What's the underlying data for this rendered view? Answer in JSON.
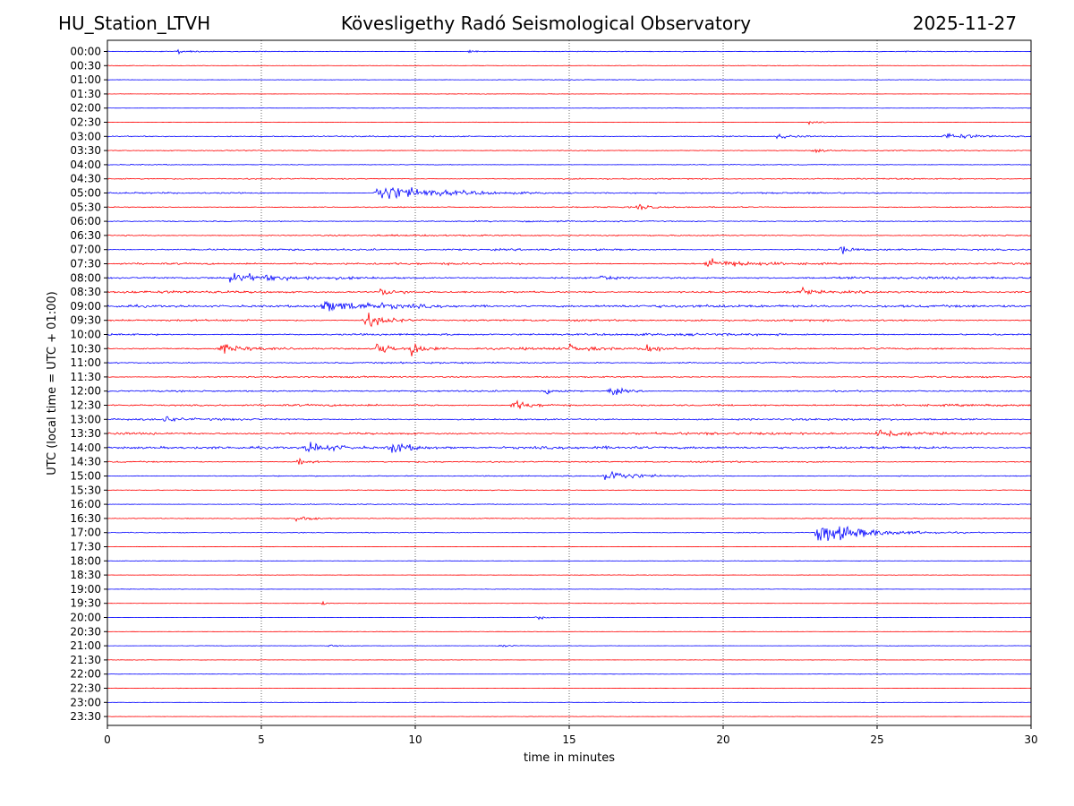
{
  "header": {
    "station": "HU_Station_LTVH",
    "title": "Kövesligethy Radó Seismological Observatory",
    "date": "2025-11-27"
  },
  "chart_data": {
    "type": "line",
    "title": "Kövesligethy Radó Seismological Observatory",
    "xlabel": "time in minutes",
    "ylabel": "UTC (local time = UTC + 01:00)",
    "xlim": [
      0,
      30
    ],
    "xticks": [
      0,
      5,
      10,
      15,
      20,
      25,
      30
    ],
    "grid_x": [
      5,
      10,
      15,
      20,
      25
    ],
    "rows": [
      "00:00",
      "00:30",
      "01:00",
      "01:30",
      "02:00",
      "02:30",
      "03:00",
      "03:30",
      "04:00",
      "04:30",
      "05:00",
      "05:30",
      "06:00",
      "06:30",
      "07:00",
      "07:30",
      "08:00",
      "08:30",
      "09:00",
      "09:30",
      "10:00",
      "10:30",
      "11:00",
      "11:30",
      "12:00",
      "12:30",
      "13:00",
      "13:30",
      "14:00",
      "14:30",
      "15:00",
      "15:30",
      "16:00",
      "16:30",
      "17:00",
      "17:30",
      "18:00",
      "18:30",
      "19:00",
      "19:30",
      "20:00",
      "20:30",
      "21:00",
      "21:30",
      "22:00",
      "22:30",
      "23:00",
      "23:30"
    ],
    "trace_colors": [
      "#0000ff",
      "#ff0000"
    ],
    "noise_levels": [
      0.6,
      0.4,
      0.4,
      0.3,
      0.3,
      0.3,
      0.8,
      0.6,
      0.5,
      0.9,
      1.0,
      0.8,
      0.9,
      1.0,
      1.3,
      1.3,
      1.5,
      1.5,
      1.8,
      1.3,
      1.5,
      1.5,
      1.0,
      1.0,
      1.1,
      1.3,
      1.3,
      1.5,
      1.8,
      1.0,
      0.8,
      0.6,
      0.6,
      0.6,
      0.6,
      0.3,
      0.3,
      0.3,
      0.3,
      0.3,
      0.3,
      0.3,
      0.3,
      0.3,
      0.3,
      0.3,
      0.3,
      0.3
    ],
    "events": [
      {
        "row": "00:00",
        "minute": 2.3,
        "amplitude": 3,
        "duration": 0.6
      },
      {
        "row": "00:00",
        "minute": 11.8,
        "amplitude": 3,
        "duration": 0.5
      },
      {
        "row": "02:30",
        "minute": 22.8,
        "amplitude": 3,
        "duration": 0.8
      },
      {
        "row": "03:00",
        "minute": 21.8,
        "amplitude": 4,
        "duration": 1.2
      },
      {
        "row": "03:00",
        "minute": 27.2,
        "amplitude": 5,
        "duration": 1.8
      },
      {
        "row": "03:30",
        "minute": 23.0,
        "amplitude": 3,
        "duration": 0.6
      },
      {
        "row": "05:00",
        "minute": 8.8,
        "amplitude": 14,
        "duration": 3.5
      },
      {
        "row": "05:30",
        "minute": 17.3,
        "amplitude": 6,
        "duration": 0.5
      },
      {
        "row": "07:00",
        "minute": 23.9,
        "amplitude": 7,
        "duration": 0.4
      },
      {
        "row": "07:30",
        "minute": 19.5,
        "amplitude": 7,
        "duration": 2.5
      },
      {
        "row": "08:00",
        "minute": 4.0,
        "amplitude": 6,
        "duration": 3.0
      },
      {
        "row": "08:00",
        "minute": 16.1,
        "amplitude": 7,
        "duration": 0.4
      },
      {
        "row": "08:30",
        "minute": 8.9,
        "amplitude": 6,
        "duration": 1.0
      },
      {
        "row": "08:30",
        "minute": 22.6,
        "amplitude": 6,
        "duration": 0.4
      },
      {
        "row": "09:00",
        "minute": 7.0,
        "amplitude": 7,
        "duration": 5.0
      },
      {
        "row": "09:30",
        "minute": 8.4,
        "amplitude": 12,
        "duration": 1.4
      },
      {
        "row": "10:30",
        "minute": 3.7,
        "amplitude": 6,
        "duration": 1.5
      },
      {
        "row": "10:30",
        "minute": 8.8,
        "amplitude": 14,
        "duration": 0.7
      },
      {
        "row": "10:30",
        "minute": 9.9,
        "amplitude": 13,
        "duration": 0.7
      },
      {
        "row": "10:30",
        "minute": 15.0,
        "amplitude": 5,
        "duration": 1.0
      },
      {
        "row": "10:30",
        "minute": 17.5,
        "amplitude": 6,
        "duration": 1.0
      },
      {
        "row": "12:00",
        "minute": 14.2,
        "amplitude": 6,
        "duration": 0.8
      },
      {
        "row": "12:00",
        "minute": 16.3,
        "amplitude": 7,
        "duration": 1.0
      },
      {
        "row": "12:30",
        "minute": 13.2,
        "amplitude": 7,
        "duration": 1.5
      },
      {
        "row": "13:00",
        "minute": 1.9,
        "amplitude": 5,
        "duration": 0.6
      },
      {
        "row": "13:30",
        "minute": 25.0,
        "amplitude": 8,
        "duration": 1.8
      },
      {
        "row": "14:00",
        "minute": 6.5,
        "amplitude": 8,
        "duration": 2.0
      },
      {
        "row": "14:00",
        "minute": 9.2,
        "amplitude": 10,
        "duration": 1.5
      },
      {
        "row": "14:30",
        "minute": 6.2,
        "amplitude": 6,
        "duration": 0.8
      },
      {
        "row": "15:00",
        "minute": 16.2,
        "amplitude": 10,
        "duration": 1.6
      },
      {
        "row": "16:30",
        "minute": 6.2,
        "amplitude": 5,
        "duration": 0.8
      },
      {
        "row": "17:00",
        "minute": 23.1,
        "amplitude": 18,
        "duration": 3.0
      },
      {
        "row": "19:30",
        "minute": 7.0,
        "amplitude": 3,
        "duration": 0.3
      },
      {
        "row": "20:00",
        "minute": 14.0,
        "amplitude": 3,
        "duration": 0.6
      },
      {
        "row": "21:00",
        "minute": 7.3,
        "amplitude": 3,
        "duration": 0.3
      },
      {
        "row": "21:00",
        "minute": 12.8,
        "amplitude": 3,
        "duration": 0.6
      }
    ]
  }
}
